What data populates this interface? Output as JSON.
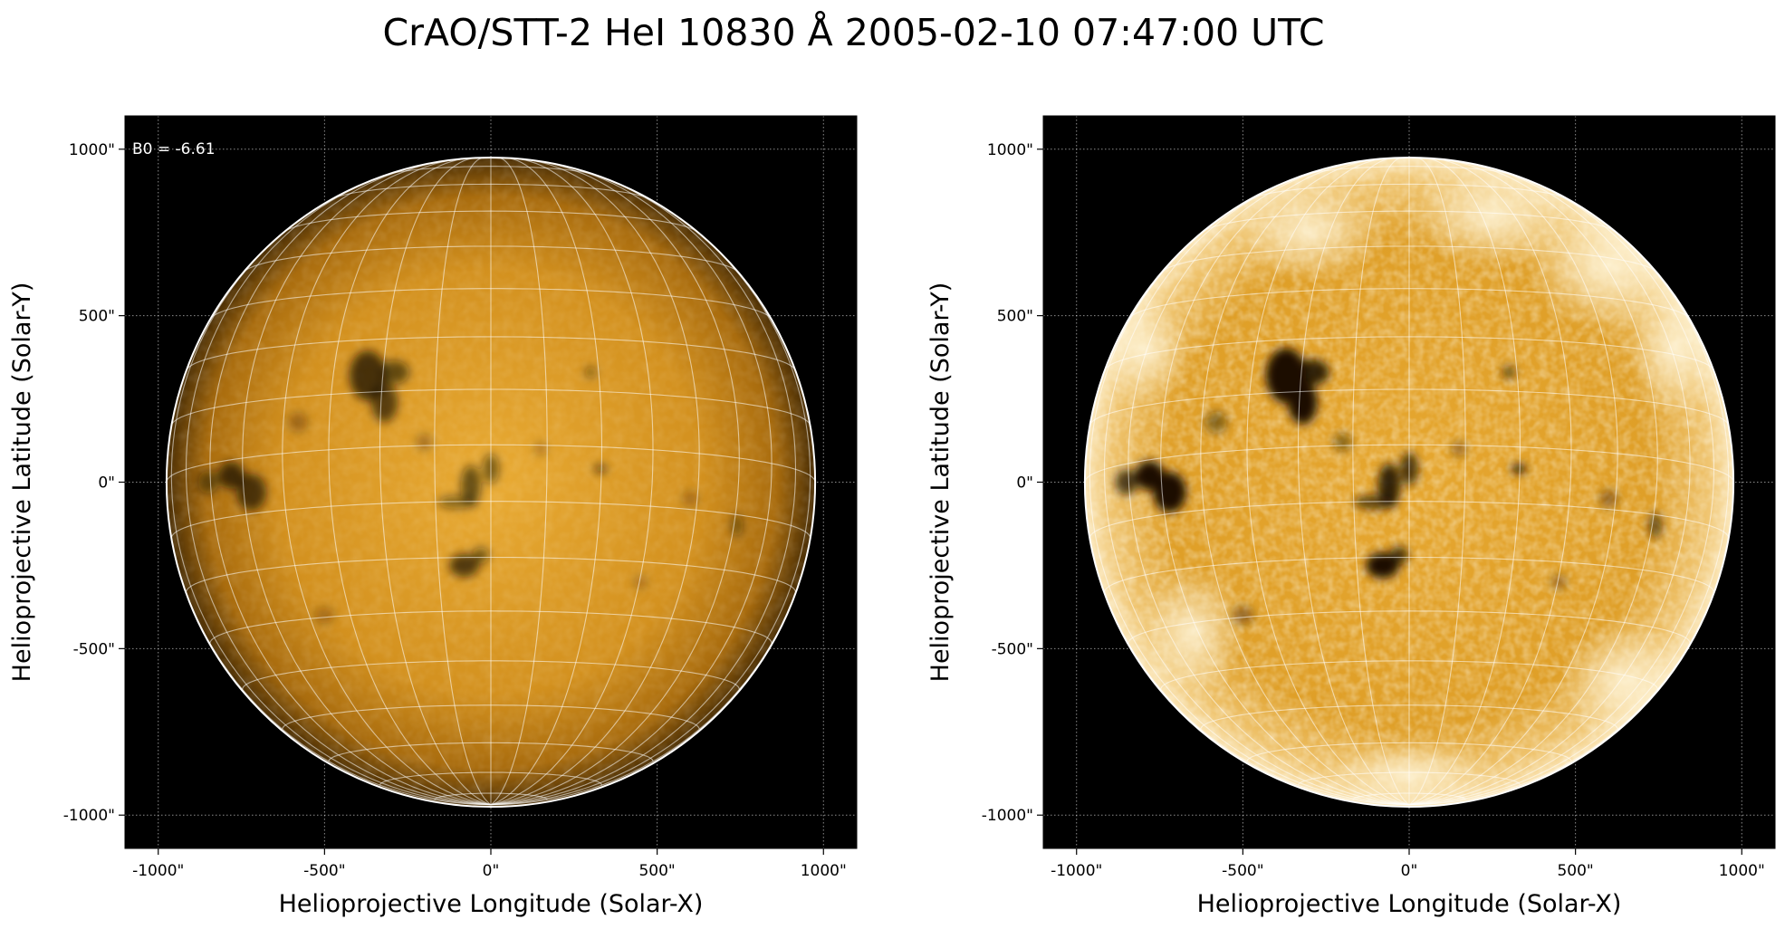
{
  "title": "CrAO/STT-2 HeI 10830 Å 2005-02-10 07:47:00 UTC",
  "colors": {
    "background": "#000000",
    "disk_center": "#e8a82e",
    "disk_mid": "#c98716",
    "disk_limb": "#4a2e05",
    "grid": "#ffffff",
    "dark_feature": "#1a1003"
  },
  "panels": [
    {
      "name": "left",
      "annotation": "B0 = -6.61",
      "xlabel": "Helioprojective Longitude (Solar-X)",
      "ylabel": "Helioprojective Latitude (Solar-Y)",
      "xticks": [
        "-1000\"",
        "-500\"",
        "0\"",
        "500\"",
        "1000\""
      ],
      "yticks": [
        "1000\"",
        "500\"",
        "0\"",
        "-500\"",
        "-1000\""
      ]
    },
    {
      "name": "right",
      "annotation": "",
      "xlabel": "Helioprojective Longitude (Solar-X)",
      "ylabel": "Helioprojective Latitude (Solar-Y)",
      "xticks": [
        "-1000\"",
        "-500\"",
        "0\"",
        "500\"",
        "1000\""
      ],
      "yticks": [
        "1000\"",
        "500\"",
        "0\"",
        "-500\"",
        "-1000\""
      ]
    }
  ],
  "axes": {
    "xlim": [
      -1100,
      1100
    ],
    "ylim": [
      -1100,
      1100
    ],
    "tick_values": [
      -1000,
      -500,
      0,
      500,
      1000
    ],
    "solar_radius_arcsec": 975,
    "b0_deg": -6.61,
    "grid": true
  }
}
